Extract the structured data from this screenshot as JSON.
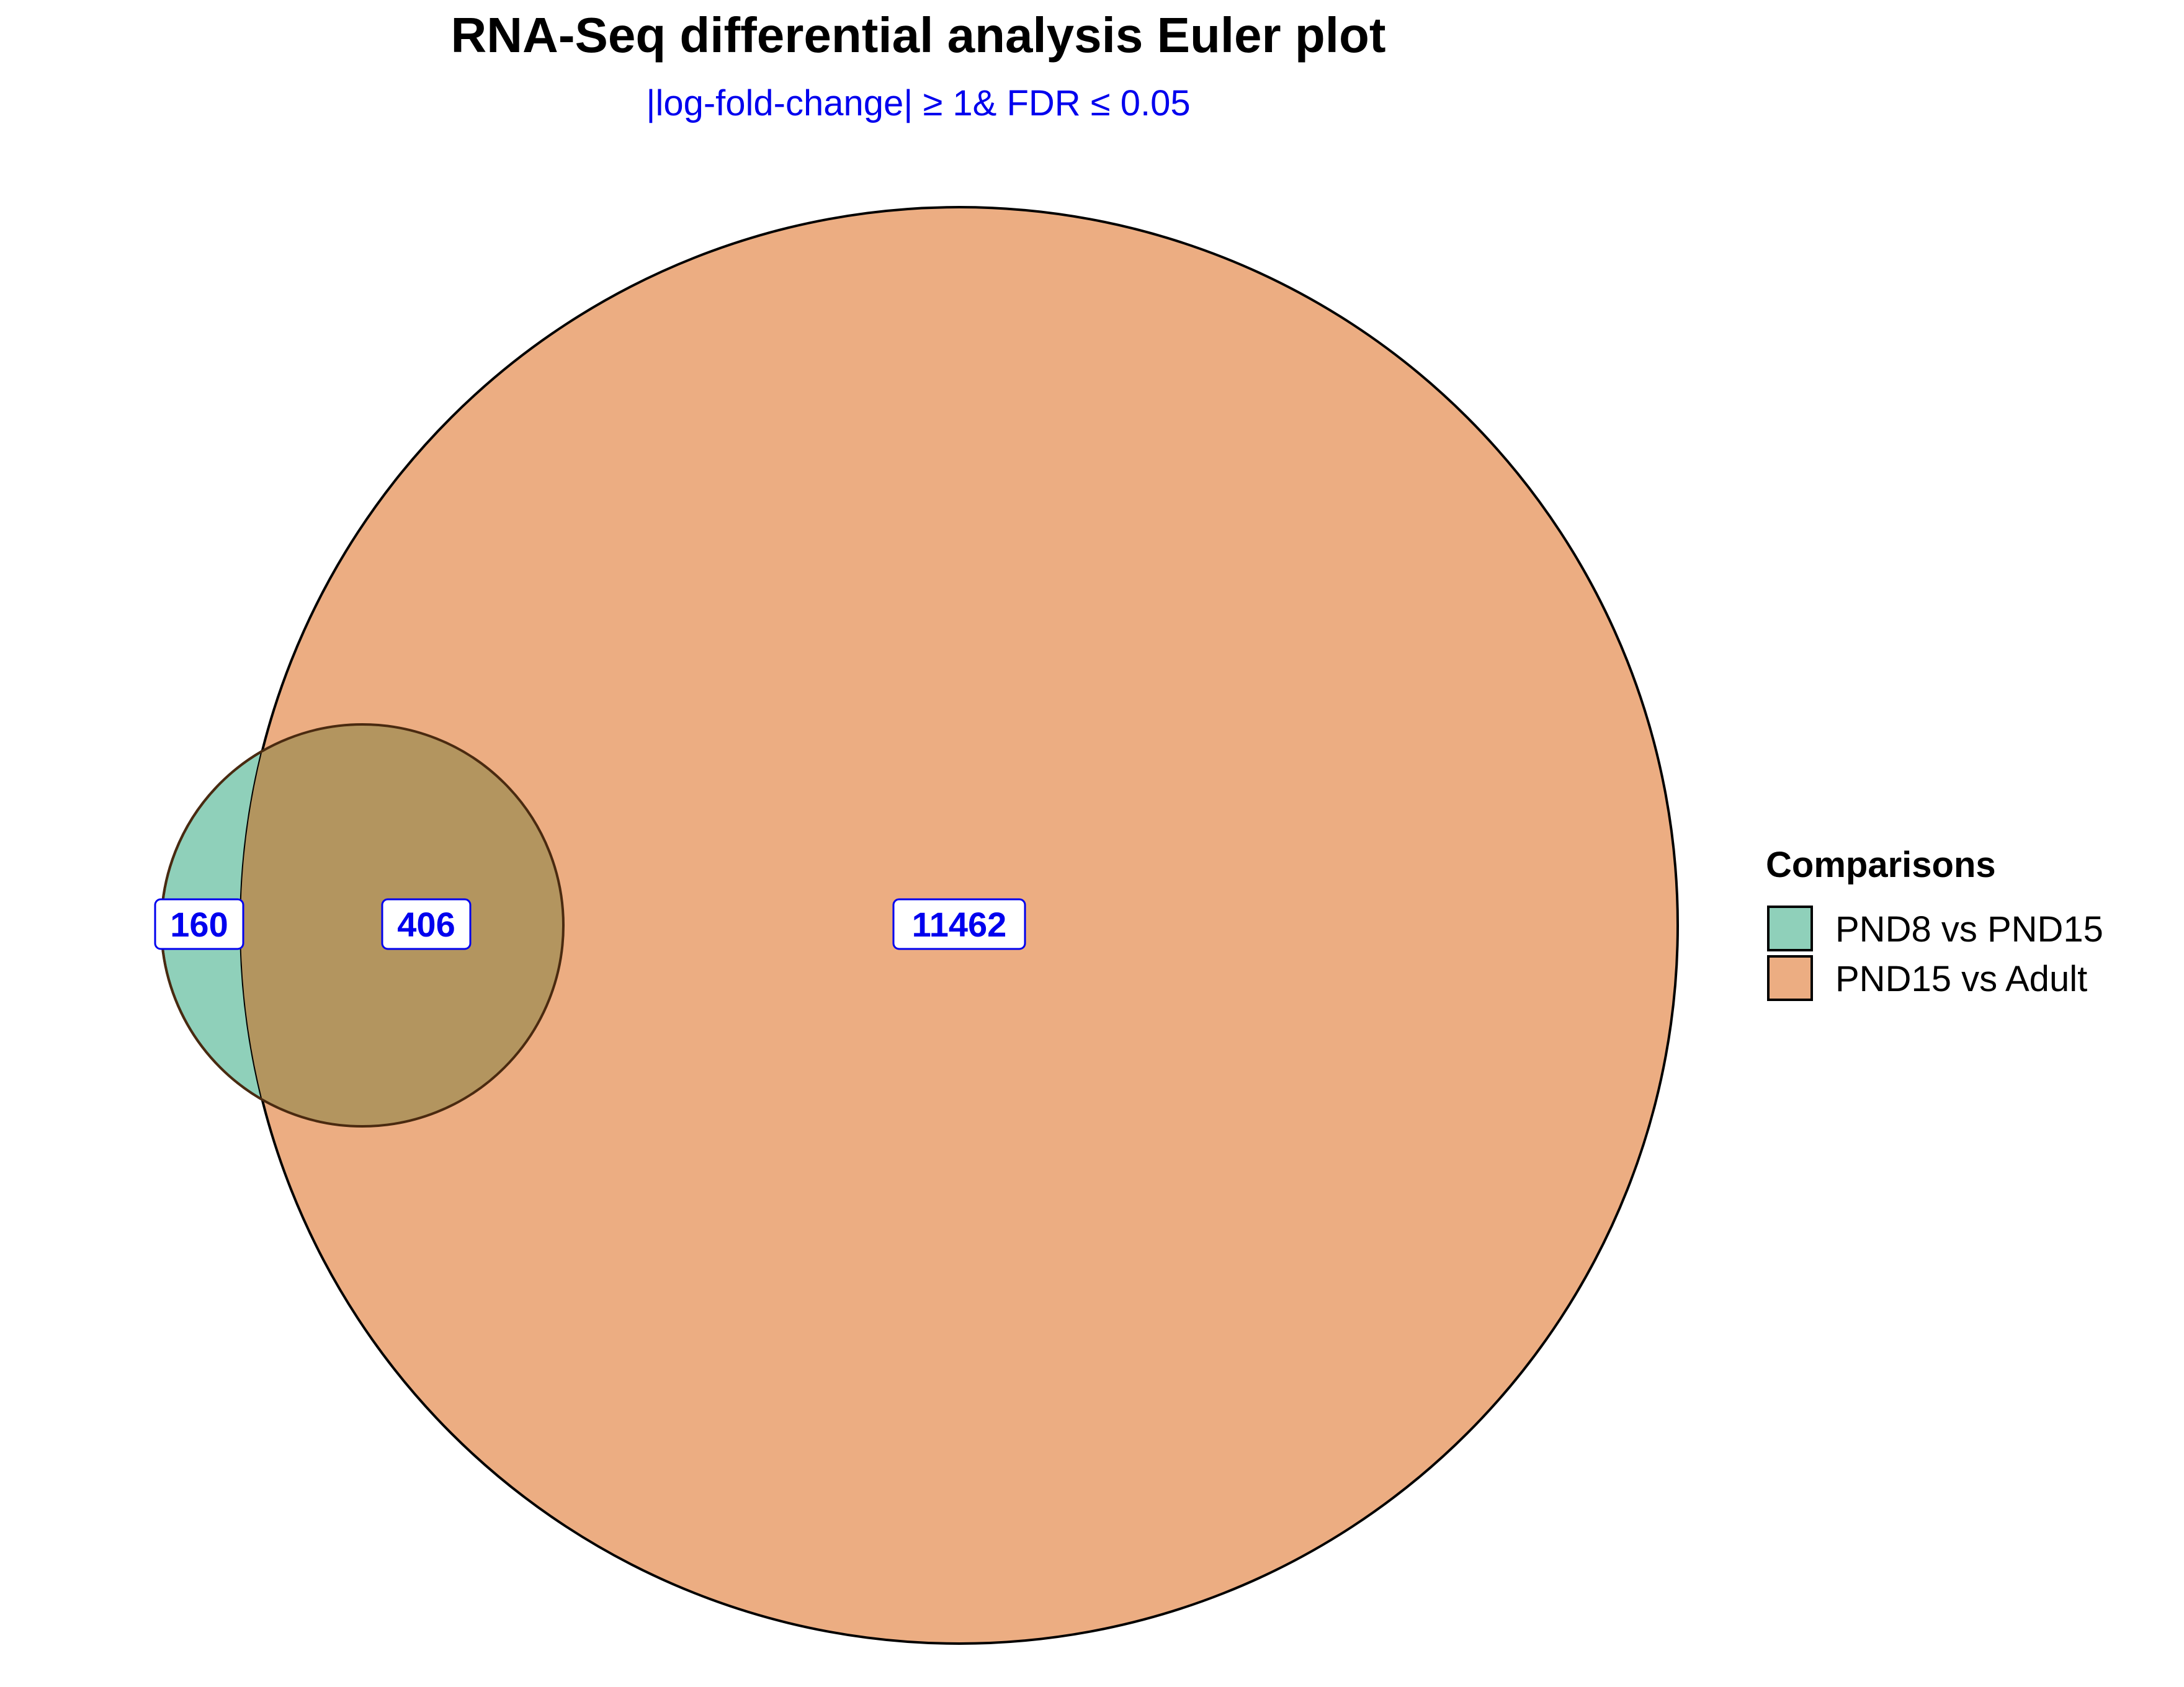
{
  "chart_data": {
    "type": "euler",
    "title": "RNA-Seq differential analysis Euler plot",
    "subtitle": "|log-fold-change| ≥ 1& FDR ≤ 0.05",
    "sets": [
      {
        "name": "PND8 vs PND15",
        "color": "#8FD0BA"
      },
      {
        "name": "PND15 vs Adult",
        "color": "#ECAD82"
      }
    ],
    "regions": [
      {
        "sets": [
          "PND8 vs PND15"
        ],
        "count": "160"
      },
      {
        "sets": [
          "PND8 vs PND15",
          "PND15 vs Adult"
        ],
        "count": "406"
      },
      {
        "sets": [
          "PND15 vs Adult"
        ],
        "count": "11462"
      }
    ],
    "overlap_color": "#B3955F",
    "label_color": "#0000EE",
    "legend": {
      "title": "Comparisons",
      "position": "right"
    }
  }
}
